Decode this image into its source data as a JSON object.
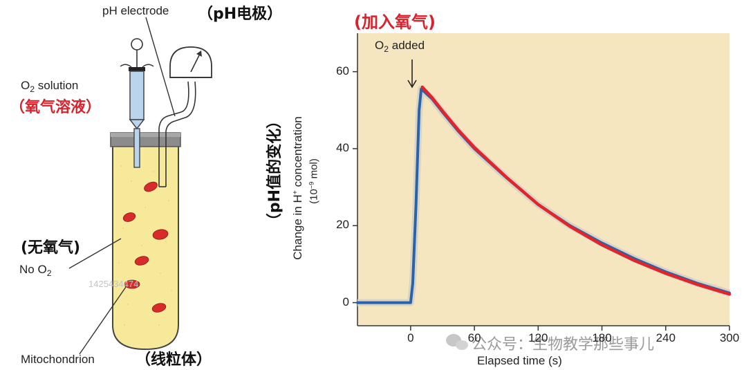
{
  "left_diagram": {
    "ph_electrode_label": "pH electrode",
    "ph_electrode_label_zh": "（pH电极）",
    "o2_solution_label_prefix": "O",
    "o2_solution_label_sub": "2",
    "o2_solution_label_suffix": " solution",
    "o2_solution_label_zh": "（氧气溶液）",
    "no_o2_label_zh": "(无氧气)",
    "no_o2_label_prefix": "No O",
    "no_o2_label_sub": "2",
    "mitochondrion_label": "Mitochondrion",
    "mitochondrion_label_zh": "（线粒体）",
    "colors": {
      "tube_fill": "#f7e99a",
      "tube_stopper": "#8c8c8c",
      "syringe_fill": "#b9d4ec",
      "mitochondrion": "#d92b2b"
    }
  },
  "chart_title_zh": "(加入氧气)",
  "chart_data": {
    "type": "line",
    "ylabel_zh": "（pH值的变化）",
    "ylabel_line1": "Change in H",
    "ylabel_sup": "+",
    "ylabel_line1_suffix": " concentration",
    "ylabel_unit_prefix": "(10",
    "ylabel_unit_sup": "−9",
    "ylabel_unit_suffix": " mol)",
    "xlabel": "Elapsed time (s)",
    "annotation_prefix": "O",
    "annotation_sub": "2",
    "annotation_suffix": " added",
    "xlim": [
      -50,
      300
    ],
    "ylim": [
      -6,
      70
    ],
    "x_ticks": [
      0,
      60,
      120,
      180,
      240,
      300
    ],
    "x_tick_labels": [
      "0",
      "60",
      "120",
      "180",
      "240",
      "300"
    ],
    "y_ticks": [
      0,
      20,
      40,
      60
    ],
    "y_tick_labels": [
      "0",
      "20",
      "40",
      "60"
    ],
    "grid": false,
    "background": "#f6e6bf",
    "series": [
      {
        "color": "#2b63a8",
        "points": [
          [
            -50,
            0
          ],
          [
            -30,
            0
          ],
          [
            -10,
            0
          ],
          [
            0,
            0
          ],
          [
            2,
            5
          ],
          [
            5,
            25
          ],
          [
            8,
            50
          ],
          [
            10,
            55.5
          ],
          [
            20,
            53
          ],
          [
            30,
            49.5
          ],
          [
            45,
            44.5
          ],
          [
            60,
            40
          ],
          [
            90,
            32.5
          ],
          [
            120,
            25.5
          ],
          [
            150,
            20
          ],
          [
            180,
            15.5
          ],
          [
            210,
            11.5
          ],
          [
            240,
            8
          ],
          [
            270,
            5
          ],
          [
            300,
            2.5
          ]
        ]
      },
      {
        "color": "#e0252b",
        "points": [
          [
            11,
            56
          ],
          [
            20,
            53.3
          ],
          [
            30,
            49.8
          ],
          [
            45,
            44.8
          ],
          [
            60,
            40.3
          ],
          [
            90,
            32.6
          ],
          [
            120,
            25.5
          ],
          [
            150,
            19.8
          ],
          [
            180,
            15
          ],
          [
            210,
            11
          ],
          [
            240,
            7.6
          ],
          [
            270,
            4.7
          ],
          [
            300,
            2.2
          ]
        ]
      }
    ]
  },
  "watermark": {
    "logo_text": "公众号：生物教学那些事儿",
    "id_text": "1425434474"
  }
}
